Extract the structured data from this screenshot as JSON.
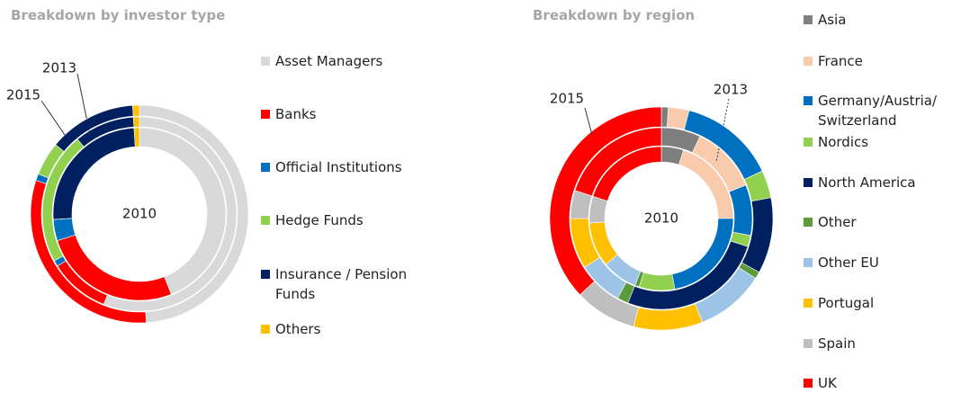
{
  "chart_data": [
    {
      "type": "donut",
      "title": "Breakdown by investor type",
      "categories": [
        "Asset Managers",
        "Banks",
        "Official Institutions",
        "Hedge Funds",
        "Insurance / Pension Funds",
        "Others"
      ],
      "colors": [
        "#d9d9d9",
        "#ff0000",
        "#0070c0",
        "#92d050",
        "#002060",
        "#ffc000"
      ],
      "series": [
        {
          "name": "2010",
          "values": [
            44,
            26,
            4,
            0,
            25,
            1
          ]
        },
        {
          "name": "2013",
          "values": [
            56,
            10,
            1,
            22,
            10,
            1
          ]
        },
        {
          "name": "2015",
          "values": [
            49,
            31,
            1,
            5,
            13,
            1
          ]
        }
      ]
    },
    {
      "type": "donut",
      "title": "Breakdown by region",
      "categories": [
        "Asia",
        "France",
        "Germany/Austria/ Switzerland",
        "Nordics",
        "North America",
        "Other",
        "Other EU",
        "Portugal",
        "Spain",
        "UK"
      ],
      "colors": [
        "#7f7f7f",
        "#f8cbad",
        "#0070c0",
        "#92d050",
        "#002060",
        "#5b9b3a",
        "#9dc3e6",
        "#ffc000",
        "#bfbfbf",
        "#ff0000"
      ],
      "series": [
        {
          "name": "2010",
          "values": [
            5,
            20,
            22,
            8,
            0,
            1,
            8,
            10,
            6,
            20
          ]
        },
        {
          "name": "2013",
          "values": [
            7,
            12,
            9,
            2,
            26,
            2,
            8,
            9,
            5,
            20
          ]
        },
        {
          "name": "2015",
          "values": [
            1,
            3,
            14,
            4,
            11,
            1,
            10,
            10,
            9,
            37
          ]
        }
      ]
    }
  ]
}
